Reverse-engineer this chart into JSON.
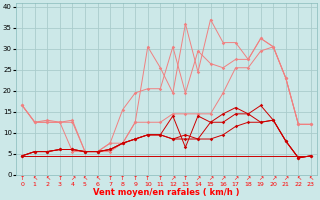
{
  "x": [
    0,
    1,
    2,
    3,
    4,
    5,
    6,
    7,
    8,
    9,
    10,
    11,
    12,
    13,
    14,
    15,
    16,
    17,
    18,
    19,
    20,
    21,
    22,
    23
  ],
  "background_color": "#cce8e8",
  "grid_color": "#aacccc",
  "xlabel": "Vent moyen/en rafales ( km/h )",
  "ylabel_values": [
    0,
    5,
    10,
    15,
    20,
    25,
    30,
    35,
    40
  ],
  "ylim": [
    0,
    41
  ],
  "xlim": [
    -0.5,
    23.5
  ],
  "line_light_pink_1": [
    16.5,
    12.5,
    13.0,
    12.5,
    13.0,
    5.5,
    5.5,
    7.5,
    7.5,
    12.5,
    30.5,
    25.5,
    19.5,
    36.0,
    24.5,
    37.0,
    31.5,
    31.5,
    27.5,
    32.5,
    30.5,
    23.0,
    12.0,
    12.0
  ],
  "line_light_pink_2": [
    16.5,
    12.5,
    12.5,
    12.5,
    12.5,
    5.5,
    5.5,
    7.5,
    15.5,
    19.5,
    20.5,
    20.5,
    30.5,
    19.5,
    29.5,
    26.5,
    25.5,
    27.5,
    27.5,
    32.5,
    30.5,
    23.0,
    12.0,
    12.0
  ],
  "line_light_pink_3": [
    16.5,
    12.5,
    12.5,
    12.5,
    5.5,
    5.5,
    5.5,
    5.5,
    7.5,
    12.5,
    12.5,
    12.5,
    14.5,
    14.5,
    14.5,
    14.5,
    19.5,
    25.5,
    25.5,
    29.5,
    30.5,
    23.0,
    12.0,
    12.0
  ],
  "line_dark_red_1": [
    4.5,
    5.5,
    5.5,
    6.0,
    6.0,
    5.5,
    5.5,
    6.0,
    7.5,
    8.5,
    9.5,
    9.5,
    14.0,
    6.5,
    14.0,
    12.5,
    14.5,
    16.0,
    14.5,
    16.5,
    13.0,
    8.0,
    4.0,
    4.5
  ],
  "line_dark_red_2": [
    4.5,
    5.5,
    5.5,
    6.0,
    6.0,
    5.5,
    5.5,
    6.0,
    7.5,
    8.5,
    9.5,
    9.5,
    8.5,
    9.5,
    8.5,
    12.5,
    12.5,
    14.5,
    14.5,
    12.5,
    13.0,
    8.0,
    4.0,
    4.5
  ],
  "line_dark_red_3": [
    4.5,
    5.5,
    5.5,
    6.0,
    6.0,
    5.5,
    5.5,
    6.0,
    7.5,
    8.5,
    9.5,
    9.5,
    8.5,
    8.5,
    8.5,
    8.5,
    9.5,
    11.5,
    12.5,
    12.5,
    13.0,
    8.0,
    4.0,
    4.5
  ],
  "line_flat_red": [
    4.5,
    4.5,
    4.5,
    4.5,
    4.5,
    4.5,
    4.5,
    4.5,
    4.5,
    4.5,
    4.5,
    4.5,
    4.5,
    4.5,
    4.5,
    4.5,
    4.5,
    4.5,
    4.5,
    4.5,
    4.5,
    4.5,
    4.5,
    4.5
  ],
  "color_light_pink": "#f08080",
  "color_dark_red": "#cc0000",
  "color_flat": "#cc0000",
  "wind_arrows": [
    "↑",
    "↖",
    "↖",
    "↑",
    "↗",
    "↖",
    "↖",
    "↑",
    "↑",
    "↑",
    "↑",
    "↑",
    "↗",
    "↑",
    "↗",
    "↗",
    "↗",
    "↗",
    "↗",
    "↗",
    "↗",
    "↗",
    "↖",
    "↖"
  ]
}
